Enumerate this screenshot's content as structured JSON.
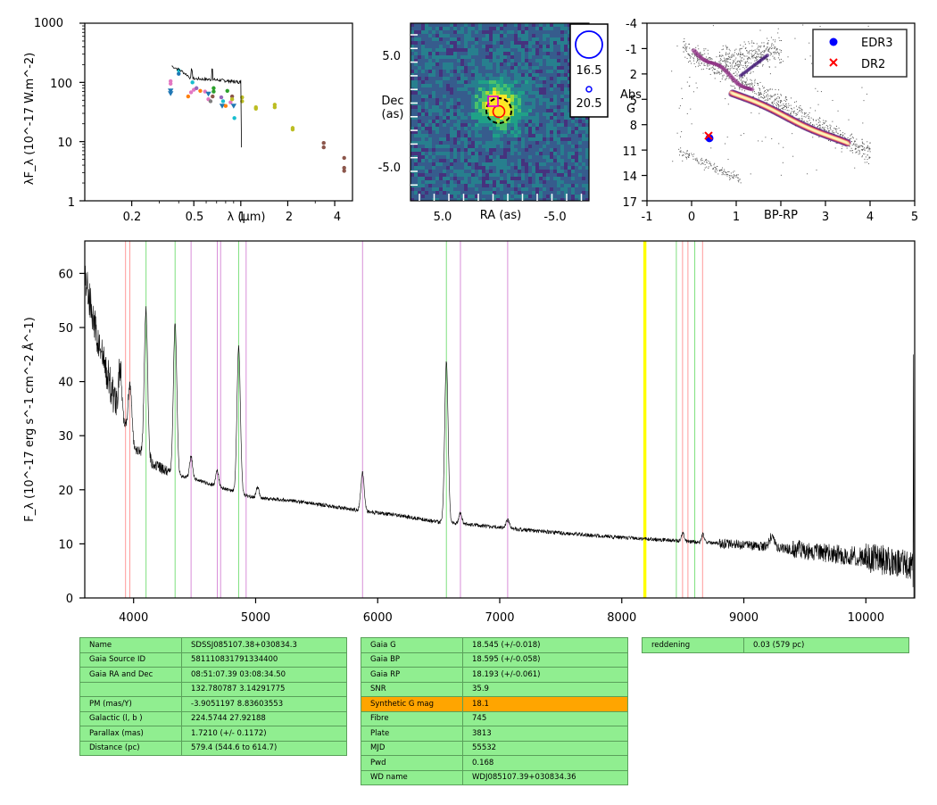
{
  "sed": {
    "ylabel": "λF_λ (10^-17 W.m^-2)",
    "xlabel": "λ (μm)",
    "yticks": [
      "1000",
      "100",
      "10",
      "1"
    ],
    "xticks": [
      "0.2",
      "0.5",
      "1",
      "2",
      "4"
    ],
    "points": [
      {
        "x": 0.355,
        "y": 105,
        "c": "#e377c2",
        "m": "o"
      },
      {
        "x": 0.355,
        "y": 95,
        "c": "#e377c2",
        "m": "o"
      },
      {
        "x": 0.355,
        "y": 72,
        "c": "#1f77b4",
        "m": "v"
      },
      {
        "x": 0.355,
        "y": 65,
        "c": "#1f77b4",
        "m": "v"
      },
      {
        "x": 0.4,
        "y": 160,
        "c": "#17becf",
        "m": "o"
      },
      {
        "x": 0.4,
        "y": 140,
        "c": "#1f77b4",
        "m": "o"
      },
      {
        "x": 0.46,
        "y": 58,
        "c": "#ff7f0e",
        "m": "o"
      },
      {
        "x": 0.48,
        "y": 68,
        "c": "#e377c2",
        "m": "o"
      },
      {
        "x": 0.49,
        "y": 100,
        "c": "#17becf",
        "m": "o"
      },
      {
        "x": 0.5,
        "y": 75,
        "c": "#e377c2",
        "m": "o"
      },
      {
        "x": 0.52,
        "y": 80,
        "c": "#9467bd",
        "m": "o"
      },
      {
        "x": 0.55,
        "y": 72,
        "c": "#ff7f0e",
        "m": "o"
      },
      {
        "x": 0.59,
        "y": 70,
        "c": "#e377c2",
        "m": "o"
      },
      {
        "x": 0.62,
        "y": 64,
        "c": "#1f77b4",
        "m": "v"
      },
      {
        "x": 0.62,
        "y": 52,
        "c": "#e377c2",
        "m": "o"
      },
      {
        "x": 0.64,
        "y": 48,
        "c": "#7f7f7f",
        "m": "o"
      },
      {
        "x": 0.66,
        "y": 58,
        "c": "#8c564b",
        "m": "o"
      },
      {
        "x": 0.67,
        "y": 80,
        "c": "#2ca02c",
        "m": "o"
      },
      {
        "x": 0.67,
        "y": 70,
        "c": "#2ca02c",
        "m": "o"
      },
      {
        "x": 0.75,
        "y": 56,
        "c": "#9467bd",
        "m": "o"
      },
      {
        "x": 0.76,
        "y": 40,
        "c": "#1f77b4",
        "m": "v"
      },
      {
        "x": 0.77,
        "y": 48,
        "c": "#17becf",
        "m": "o"
      },
      {
        "x": 0.8,
        "y": 40,
        "c": "#ff7f0e",
        "m": "o"
      },
      {
        "x": 0.82,
        "y": 72,
        "c": "#2ca02c",
        "m": "o"
      },
      {
        "x": 0.86,
        "y": 46,
        "c": "#e377c2",
        "m": "o"
      },
      {
        "x": 0.88,
        "y": 58,
        "c": "#8c564b",
        "m": "o"
      },
      {
        "x": 0.88,
        "y": 52,
        "c": "#bcbd22",
        "m": "o"
      },
      {
        "x": 0.9,
        "y": 40,
        "c": "#1f77b4",
        "m": "v"
      },
      {
        "x": 0.91,
        "y": 25,
        "c": "#17becf",
        "m": "o"
      },
      {
        "x": 1.02,
        "y": 56,
        "c": "#bcbd22",
        "m": "o"
      },
      {
        "x": 1.02,
        "y": 48,
        "c": "#bcbd22",
        "m": "o"
      },
      {
        "x": 1.25,
        "y": 38,
        "c": "#bcbd22",
        "m": "o"
      },
      {
        "x": 1.25,
        "y": 36,
        "c": "#bcbd22",
        "m": "o"
      },
      {
        "x": 1.65,
        "y": 42,
        "c": "#bcbd22",
        "m": "o"
      },
      {
        "x": 1.65,
        "y": 38,
        "c": "#bcbd22",
        "m": "o"
      },
      {
        "x": 2.15,
        "y": 17,
        "c": "#bcbd22",
        "m": "o"
      },
      {
        "x": 2.15,
        "y": 16,
        "c": "#bcbd22",
        "m": "o"
      },
      {
        "x": 3.4,
        "y": 9.5,
        "c": "#8c564b",
        "m": "o"
      },
      {
        "x": 3.4,
        "y": 8,
        "c": "#8c564b",
        "m": "o"
      },
      {
        "x": 4.6,
        "y": 5.3,
        "c": "#8c564b",
        "m": "o"
      },
      {
        "x": 4.6,
        "y": 3.6,
        "c": "#8c564b",
        "m": "o"
      },
      {
        "x": 4.6,
        "y": 3.2,
        "c": "#8c564b",
        "m": "o"
      }
    ]
  },
  "image": {
    "ylabel_1": "Dec",
    "ylabel_2": "(as)",
    "xlabel": "RA (as)",
    "xticks": [
      "5.0",
      "-5.0"
    ],
    "yticks": [
      "5.0",
      "-5.0"
    ],
    "legend_big": "16.5",
    "legend_small": "20.5"
  },
  "hrd": {
    "ylabel_1": "Abs",
    "ylabel_2": "G",
    "xlabel": "BP-RP",
    "yticks": [
      "-4",
      "-1",
      "2",
      "5",
      "8",
      "11",
      "14",
      "17"
    ],
    "xticks": [
      "-1",
      "0",
      "1",
      "2",
      "3",
      "4",
      "5"
    ],
    "legend": [
      {
        "label": "EDR3",
        "color": "#0000ff",
        "marker": "o"
      },
      {
        "label": "DR2",
        "color": "#ff0000",
        "marker": "x"
      }
    ],
    "edr3": {
      "bp_rp": 0.4,
      "g": 9.6
    },
    "dr2": {
      "bp_rp": 0.38,
      "g": 9.3
    }
  },
  "chart_data": {
    "type": "line",
    "xlabel": "",
    "ylabel": "F_λ (10^-17 erg s^-1 cm^-2 Å^-1)",
    "xlim": [
      3600,
      10400
    ],
    "ylim": [
      0,
      66
    ],
    "xticks": [
      "4000",
      "5000",
      "6000",
      "7000",
      "8000",
      "9000",
      "10000"
    ],
    "yticks": [
      "0",
      "10",
      "20",
      "30",
      "40",
      "50",
      "60"
    ],
    "continuum": [
      [
        3600,
        60
      ],
      [
        3700,
        48
      ],
      [
        3800,
        40
      ],
      [
        3900,
        33
      ],
      [
        4000,
        28
      ],
      [
        4150,
        25
      ],
      [
        4300,
        23
      ],
      [
        4500,
        22
      ],
      [
        4700,
        20.5
      ],
      [
        5000,
        18.5
      ],
      [
        5300,
        18
      ],
      [
        5600,
        17
      ],
      [
        5900,
        16
      ],
      [
        6200,
        15.2
      ],
      [
        6500,
        14
      ],
      [
        6800,
        13.5
      ],
      [
        7000,
        13
      ],
      [
        7500,
        12
      ],
      [
        8000,
        11.2
      ],
      [
        8500,
        10.5
      ],
      [
        9000,
        9.8
      ],
      [
        9300,
        9.2
      ],
      [
        9600,
        8.5
      ],
      [
        10000,
        7.5
      ],
      [
        10400,
        6
      ]
    ],
    "emission_lines": [
      {
        "wave": 3889,
        "peak": 8,
        "w": 15
      },
      {
        "wave": 3970,
        "peak": 10,
        "w": 15
      },
      {
        "wave": 4101,
        "peak": 27,
        "w": 14
      },
      {
        "wave": 4340,
        "peak": 28,
        "w": 14
      },
      {
        "wave": 4471,
        "peak": 4,
        "w": 12
      },
      {
        "wave": 4686,
        "peak": 3,
        "w": 12
      },
      {
        "wave": 4861,
        "peak": 27,
        "w": 14
      },
      {
        "wave": 5016,
        "peak": 2,
        "w": 12
      },
      {
        "wave": 5876,
        "peak": 7,
        "w": 14
      },
      {
        "wave": 6563,
        "peak": 30,
        "w": 14
      },
      {
        "wave": 6678,
        "peak": 2,
        "w": 12
      },
      {
        "wave": 7065,
        "peak": 1.5,
        "w": 14
      },
      {
        "wave": 8500,
        "peak": 1.5,
        "w": 10
      },
      {
        "wave": 8665,
        "peak": 1.5,
        "w": 10
      },
      {
        "wave": 9230,
        "peak": 2,
        "w": 20
      }
    ],
    "marker_lines": [
      {
        "wave": 3934,
        "color": "#ff9a9a"
      },
      {
        "wave": 3969,
        "color": "#ff9a9a"
      },
      {
        "wave": 4102,
        "color": "#7fe07f"
      },
      {
        "wave": 4340,
        "color": "#7fe07f"
      },
      {
        "wave": 4471,
        "color": "#d88ed8"
      },
      {
        "wave": 4686,
        "color": "#d88ed8"
      },
      {
        "wave": 4713,
        "color": "#d88ed8"
      },
      {
        "wave": 4861,
        "color": "#7fe07f"
      },
      {
        "wave": 4922,
        "color": "#d88ed8"
      },
      {
        "wave": 5876,
        "color": "#d88ed8"
      },
      {
        "wave": 6563,
        "color": "#7fe07f"
      },
      {
        "wave": 6678,
        "color": "#d88ed8"
      },
      {
        "wave": 7065,
        "color": "#d88ed8"
      },
      {
        "wave": 8183,
        "color": "#ffff00"
      },
      {
        "wave": 8195,
        "color": "#ffff00"
      },
      {
        "wave": 8447,
        "color": "#7fe07f"
      },
      {
        "wave": 8498,
        "color": "#ff9a9a"
      },
      {
        "wave": 8542,
        "color": "#ff9a9a"
      },
      {
        "wave": 8598,
        "color": "#7fe07f"
      },
      {
        "wave": 8662,
        "color": "#ff9a9a"
      }
    ],
    "end_spike": {
      "wave": 10390,
      "value": 45
    }
  },
  "table1": [
    {
      "k": "Name",
      "v": "SDSSJ085107.38+030834.3"
    },
    {
      "k": "Gaia Source ID",
      "v": "581110831791334400"
    },
    {
      "k": "Gaia RA and Dec",
      "v": "08:51:07.39    03:08:34.50"
    },
    {
      "k": "",
      "v": "132.780787    3.14291775"
    },
    {
      "k": "PM (mas/Y)",
      "v": "-3.9051197    8.83603553"
    },
    {
      "k": "Galactic (l, b )",
      "v": "224.5744    27.92188"
    },
    {
      "k": "Parallax (mas)",
      "v": "1.7210 (+/- 0.1172)"
    },
    {
      "k": "Distance (pc)",
      "v": "579.4 (544.6 to 614.7)"
    }
  ],
  "table2": [
    {
      "k": "Gaia G",
      "v": "18.545 (+/-0.018)"
    },
    {
      "k": "Gaia BP",
      "v": "18.595 (+/-0.058)"
    },
    {
      "k": "Gaia RP",
      "v": "18.193 (+/-0.061)"
    },
    {
      "k": "SNR",
      "v": "35.9"
    },
    {
      "k": "Synthetic G mag",
      "v": "18.1",
      "highlight": true
    },
    {
      "k": "Fibre",
      "v": "745"
    },
    {
      "k": "Plate",
      "v": "3813"
    },
    {
      "k": "MJD",
      "v": "55532"
    },
    {
      "k": "Pwd",
      "v": "0.168"
    },
    {
      "k": "WD name",
      "v": "WDJ085107.39+030834.36"
    }
  ],
  "table3": [
    {
      "k": "reddening",
      "v": "0.03 (579 pc)"
    }
  ]
}
